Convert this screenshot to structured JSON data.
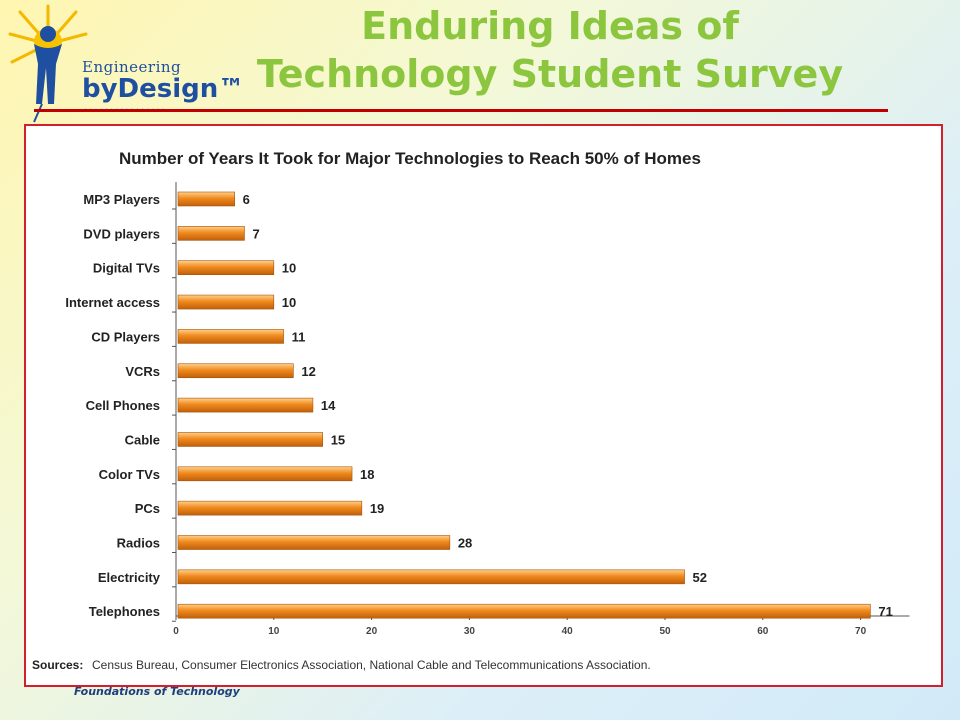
{
  "header": {
    "title_line1": "Enduring Ideas of",
    "title_line2": "Technology Student Survey"
  },
  "logo": {
    "icon": "sun-figure-icon",
    "line1": "Engineering",
    "line2": "byDesign™",
    "dots": "................"
  },
  "footer": {
    "text": "Foundations of Technology"
  },
  "colors": {
    "title": "#8cc63f",
    "bar": "#f08a1e",
    "rule": "#c00000",
    "frame": "#d21f2b"
  },
  "chart_data": {
    "type": "bar",
    "orientation": "horizontal",
    "title": "Number of Years It Took for Major Technologies to Reach 50% of Homes",
    "categories": [
      "MP3 Players",
      "DVD players",
      "Digital TVs",
      "Internet access",
      "CD Players",
      "VCRs",
      "Cell Phones",
      "Cable",
      "Color TVs",
      "PCs",
      "Radios",
      "Electricity",
      "Telephones"
    ],
    "values": [
      6,
      7,
      10,
      10,
      11,
      12,
      14,
      15,
      18,
      19,
      28,
      52,
      71
    ],
    "xlim": [
      0,
      75
    ],
    "xticks": [
      0,
      10,
      20,
      30,
      40,
      50,
      60,
      70
    ],
    "grid": false,
    "sources_label": "Sources:",
    "sources_text": "Census Bureau, Consumer Electronics Association, National Cable and Telecommunications Association."
  }
}
